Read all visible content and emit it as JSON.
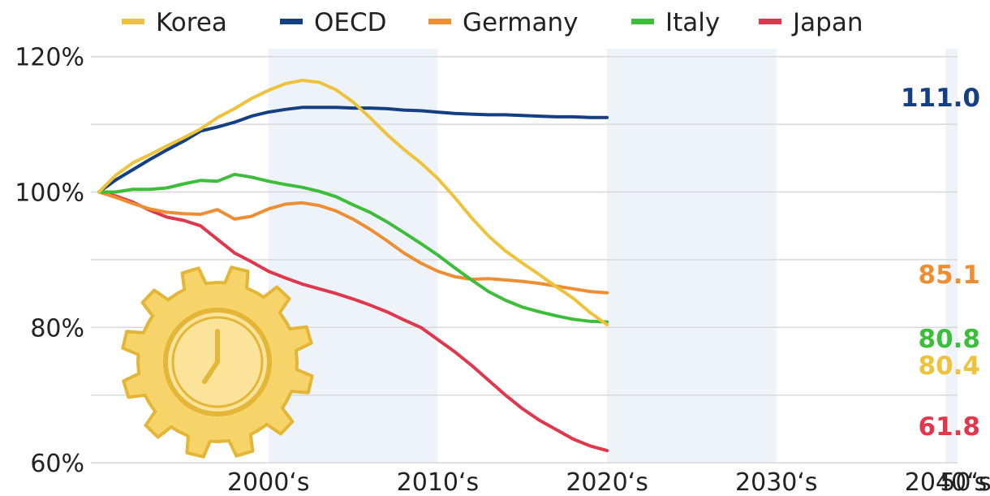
{
  "chart_data": {
    "type": "line",
    "x_tick_labels": [
      "2000‘s",
      "2010‘s",
      "2020‘s",
      "2030‘s",
      "2040‘s",
      "50‘s"
    ],
    "xlim": [
      1995,
      2050
    ],
    "y_ticks": [
      60,
      80,
      100,
      120
    ],
    "y_tick_labels": [
      "60%",
      "80%",
      "100%",
      "120%"
    ],
    "ylim": [
      60,
      122
    ],
    "grid": true,
    "legend_position": "top",
    "series": [
      {
        "name": "Korea",
        "color": "#eec23a",
        "end_label": "80.4",
        "points": [
          [
            1995,
            100
          ],
          [
            1996,
            102.5
          ],
          [
            1997,
            104.3
          ],
          [
            1998,
            105.5
          ],
          [
            1999,
            106.8
          ],
          [
            2000,
            108
          ],
          [
            2001,
            109.3
          ],
          [
            2002,
            111
          ],
          [
            2003,
            112.3
          ],
          [
            2004,
            113.8
          ],
          [
            2005,
            115
          ],
          [
            2006,
            116
          ],
          [
            2007,
            116.5
          ],
          [
            2008,
            116.2
          ],
          [
            2009,
            115.1
          ],
          [
            2010,
            113.3
          ],
          [
            2011,
            111
          ],
          [
            2012,
            108.5
          ],
          [
            2013,
            106.3
          ],
          [
            2014,
            104.3
          ],
          [
            2015,
            102
          ],
          [
            2016,
            99.2
          ],
          [
            2017,
            96.2
          ],
          [
            2018,
            93.5
          ],
          [
            2019,
            91.3
          ],
          [
            2020,
            89.5
          ],
          [
            2021,
            87.8
          ],
          [
            2022,
            86
          ],
          [
            2023,
            84.3
          ],
          [
            2024,
            82.2
          ],
          [
            2025,
            80.4
          ]
        ]
      },
      {
        "name": "OECD",
        "color": "#143f82",
        "end_label": "111.0",
        "points": [
          [
            1995,
            100
          ],
          [
            1996,
            101.8
          ],
          [
            1997,
            103.3
          ],
          [
            1998,
            104.8
          ],
          [
            1999,
            106.2
          ],
          [
            2000,
            107.5
          ],
          [
            2001,
            109
          ],
          [
            2002,
            109.6
          ],
          [
            2003,
            110.3
          ],
          [
            2004,
            111.2
          ],
          [
            2005,
            111.8
          ],
          [
            2006,
            112.2
          ],
          [
            2007,
            112.5
          ],
          [
            2008,
            112.5
          ],
          [
            2009,
            112.5
          ],
          [
            2010,
            112.4
          ],
          [
            2011,
            112.4
          ],
          [
            2012,
            112.3
          ],
          [
            2013,
            112.1
          ],
          [
            2014,
            112
          ],
          [
            2015,
            111.8
          ],
          [
            2016,
            111.6
          ],
          [
            2017,
            111.5
          ],
          [
            2018,
            111.4
          ],
          [
            2019,
            111.4
          ],
          [
            2020,
            111.3
          ],
          [
            2021,
            111.2
          ],
          [
            2022,
            111.1
          ],
          [
            2023,
            111.1
          ],
          [
            2024,
            111
          ],
          [
            2025,
            111
          ]
        ]
      },
      {
        "name": "Germany",
        "color": "#ee8e33",
        "end_label": "85.1",
        "points": [
          [
            1995,
            100
          ],
          [
            1996,
            99.2
          ],
          [
            1997,
            98.3
          ],
          [
            1998,
            97.5
          ],
          [
            1999,
            97
          ],
          [
            2000,
            96.8
          ],
          [
            2001,
            96.7
          ],
          [
            2002,
            97.4
          ],
          [
            2003,
            96
          ],
          [
            2004,
            96.4
          ],
          [
            2005,
            97.5
          ],
          [
            2006,
            98.2
          ],
          [
            2007,
            98.4
          ],
          [
            2008,
            98
          ],
          [
            2009,
            97.2
          ],
          [
            2010,
            96
          ],
          [
            2011,
            94.5
          ],
          [
            2012,
            92.8
          ],
          [
            2013,
            91
          ],
          [
            2014,
            89.5
          ],
          [
            2015,
            88.3
          ],
          [
            2016,
            87.5
          ],
          [
            2017,
            87.1
          ],
          [
            2018,
            87.2
          ],
          [
            2019,
            87
          ],
          [
            2020,
            86.8
          ],
          [
            2021,
            86.5
          ],
          [
            2022,
            86.1
          ],
          [
            2023,
            85.7
          ],
          [
            2024,
            85.3
          ],
          [
            2025,
            85.1
          ]
        ]
      },
      {
        "name": "Italy",
        "color": "#3dbe3b",
        "end_label": "80.8",
        "points": [
          [
            1995,
            100
          ],
          [
            1996,
            100
          ],
          [
            1997,
            100.4
          ],
          [
            1998,
            100.4
          ],
          [
            1999,
            100.6
          ],
          [
            2000,
            101.2
          ],
          [
            2001,
            101.7
          ],
          [
            2002,
            101.6
          ],
          [
            2003,
            102.6
          ],
          [
            2004,
            102.2
          ],
          [
            2005,
            101.6
          ],
          [
            2006,
            101.1
          ],
          [
            2007,
            100.7
          ],
          [
            2008,
            100.1
          ],
          [
            2009,
            99.3
          ],
          [
            2010,
            98.1
          ],
          [
            2011,
            97
          ],
          [
            2012,
            95.6
          ],
          [
            2013,
            94
          ],
          [
            2014,
            92.4
          ],
          [
            2015,
            90.7
          ],
          [
            2016,
            88.8
          ],
          [
            2017,
            87
          ],
          [
            2018,
            85.3
          ],
          [
            2019,
            84
          ],
          [
            2020,
            83
          ],
          [
            2021,
            82.3
          ],
          [
            2022,
            81.7
          ],
          [
            2023,
            81.2
          ],
          [
            2024,
            80.9
          ],
          [
            2025,
            80.8
          ]
        ]
      },
      {
        "name": "Japan",
        "color": "#e0374c",
        "end_label": "61.8",
        "points": [
          [
            1995,
            100
          ],
          [
            1996,
            99.4
          ],
          [
            1997,
            98.5
          ],
          [
            1998,
            97.3
          ],
          [
            1999,
            96.3
          ],
          [
            2000,
            95.8
          ],
          [
            2001,
            95
          ],
          [
            2002,
            93
          ],
          [
            2003,
            91
          ],
          [
            2004,
            89.7
          ],
          [
            2005,
            88.3
          ],
          [
            2006,
            87.3
          ],
          [
            2007,
            86.4
          ],
          [
            2008,
            85.7
          ],
          [
            2009,
            85
          ],
          [
            2010,
            84.2
          ],
          [
            2011,
            83.3
          ],
          [
            2012,
            82.3
          ],
          [
            2013,
            81.1
          ],
          [
            2014,
            80
          ],
          [
            2015,
            78.2
          ],
          [
            2016,
            76.4
          ],
          [
            2017,
            74.4
          ],
          [
            2018,
            72.2
          ],
          [
            2019,
            70
          ],
          [
            2020,
            68
          ],
          [
            2021,
            66.3
          ],
          [
            2022,
            64.9
          ],
          [
            2023,
            63.5
          ],
          [
            2024,
            62.5
          ],
          [
            2025,
            61.8
          ]
        ]
      }
    ]
  },
  "decoration": {
    "icon_name": "gear-clock-icon",
    "colors": {
      "fill": "#f6d46a",
      "stroke": "#e4b637"
    }
  }
}
